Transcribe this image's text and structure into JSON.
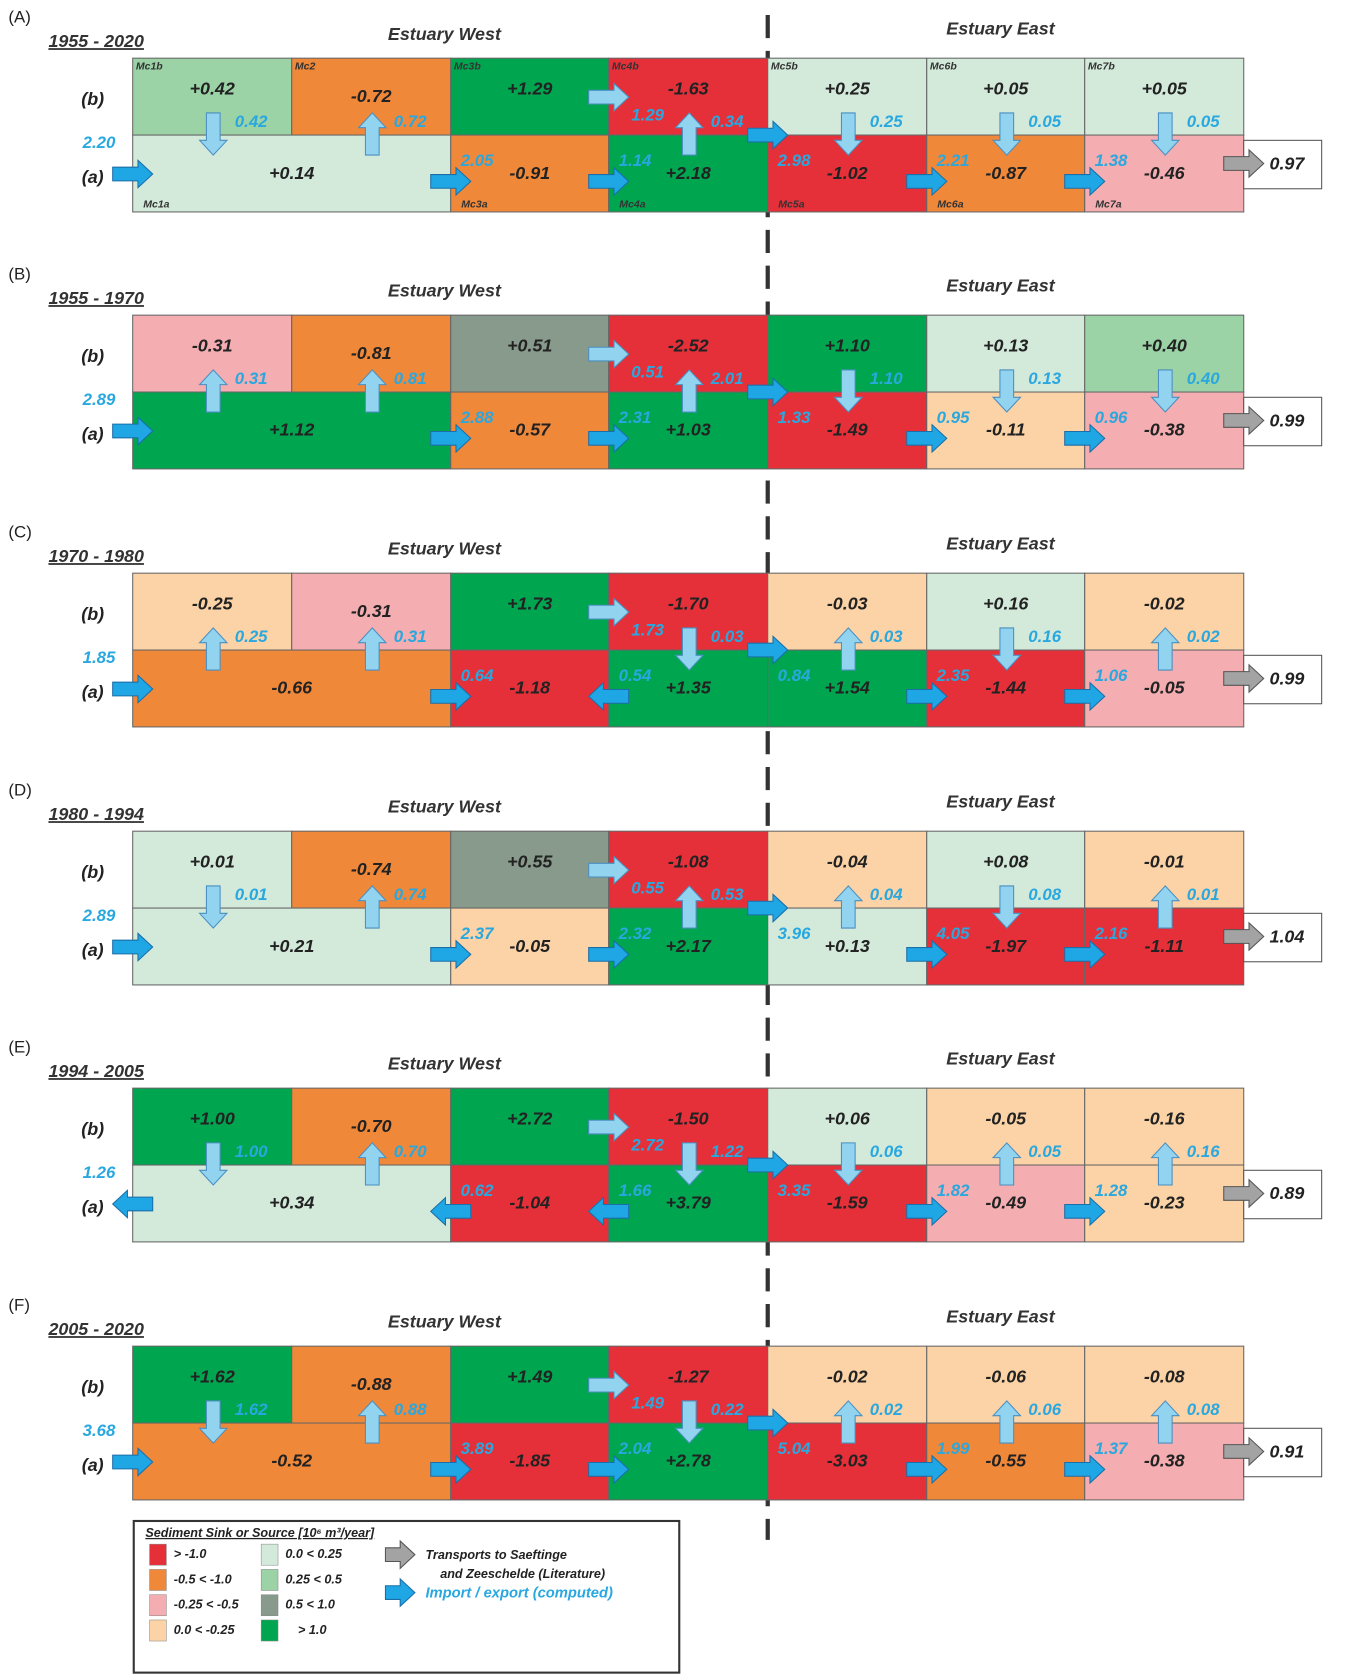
{
  "panels": [
    {
      "label": "(A)",
      "period": "1955 - 2020",
      "west": "Estuary West",
      "east": "Estuary East",
      "row_b": "(b)",
      "row_a": "(a)",
      "names_b": [
        "Mc1b",
        "Mc2",
        "Mc3b",
        "Mc4b",
        "Mc5b",
        "Mc6b",
        "Mc7b"
      ],
      "names_a": [
        "Mc1a",
        "Mc3a",
        "Mc4a",
        "Mc5a",
        "Mc6a",
        "Mc7a"
      ],
      "b": [
        {
          "value": "+0.42",
          "color": "#9bd3a7",
          "exchange": "0.42",
          "dir": "down"
        },
        {
          "value": "-0.72",
          "color": "#f0883a",
          "exchange": "0.72",
          "dir": "up"
        },
        {
          "value": "+1.29",
          "color": "#00a550"
        },
        {
          "value": "-1.63",
          "color": "#e5303a",
          "inflow": "1.29",
          "exchange": "0.34",
          "dir": "up"
        },
        {
          "value": "+0.25",
          "color": "#d3eadb",
          "exchange": "0.25",
          "dir": "down"
        },
        {
          "value": "+0.05",
          "color": "#d3eadb",
          "exchange": "0.05",
          "dir": "down"
        },
        {
          "value": "+0.05",
          "color": "#d3eadb",
          "exchange": "0.05",
          "dir": "down"
        }
      ],
      "a": [
        {
          "value": "+0.14",
          "color": "#d3eadb",
          "inflow": "2.20",
          "dir": "right"
        },
        {
          "value": "-0.91",
          "color": "#f0883a",
          "inflow": "2.05",
          "dir": "right"
        },
        {
          "value": "+2.18",
          "color": "#00a550",
          "inflow": "1.14",
          "dir": "right"
        },
        {
          "value": "-1.02",
          "color": "#e5303a",
          "inflow": "2.98",
          "dir": "right"
        },
        {
          "value": "-0.87",
          "color": "#f0883a",
          "inflow": "2.21",
          "dir": "right"
        },
        {
          "value": "-0.46",
          "color": "#f4adb0",
          "inflow": "1.38",
          "dir": "right"
        }
      ],
      "outflow": "0.97"
    },
    {
      "label": "(B)",
      "period": "1955 - 1970",
      "west": "Estuary West",
      "east": "Estuary East",
      "row_b": "(b)",
      "row_a": "(a)",
      "b": [
        {
          "value": "-0.31",
          "color": "#f4adb0",
          "exchange": "0.31",
          "dir": "up"
        },
        {
          "value": "-0.81",
          "color": "#f0883a",
          "exchange": "0.81",
          "dir": "up"
        },
        {
          "value": "+0.51",
          "color": "#889a8b"
        },
        {
          "value": "-2.52",
          "color": "#e5303a",
          "inflow": "0.51",
          "exchange": "2.01",
          "dir": "up"
        },
        {
          "value": "+1.10",
          "color": "#00a550",
          "exchange": "1.10",
          "dir": "down"
        },
        {
          "value": "+0.13",
          "color": "#d3eadb",
          "exchange": "0.13",
          "dir": "down"
        },
        {
          "value": "+0.40",
          "color": "#9bd3a7",
          "exchange": "0.40",
          "dir": "down"
        }
      ],
      "a": [
        {
          "value": "+1.12",
          "color": "#00a550",
          "inflow": "2.89",
          "dir": "right"
        },
        {
          "value": "-0.57",
          "color": "#f0883a",
          "inflow": "2.88",
          "dir": "right"
        },
        {
          "value": "+1.03",
          "color": "#00a550",
          "inflow": "2.31",
          "dir": "right"
        },
        {
          "value": "-1.49",
          "color": "#e5303a",
          "inflow": "1.33",
          "dir": "right"
        },
        {
          "value": "-0.11",
          "color": "#fbd3a6",
          "inflow": "0.95",
          "dir": "right"
        },
        {
          "value": "-0.38",
          "color": "#f4adb0",
          "inflow": "0.96",
          "dir": "right"
        }
      ],
      "outflow": "0.99"
    },
    {
      "label": "(C)",
      "period": "1970 - 1980",
      "west": "Estuary West",
      "east": "Estuary East",
      "row_b": "(b)",
      "row_a": "(a)",
      "b": [
        {
          "value": "-0.25",
          "color": "#fbd3a6",
          "exchange": "0.25",
          "dir": "up"
        },
        {
          "value": "-0.31",
          "color": "#f4adb0",
          "exchange": "0.31",
          "dir": "up"
        },
        {
          "value": "+1.73",
          "color": "#00a550"
        },
        {
          "value": "-1.70",
          "color": "#e5303a",
          "inflow": "1.73",
          "exchange": "0.03",
          "dir": "down"
        },
        {
          "value": "-0.03",
          "color": "#fbd3a6",
          "exchange": "0.03",
          "dir": "up"
        },
        {
          "value": "+0.16",
          "color": "#d3eadb",
          "exchange": "0.16",
          "dir": "down"
        },
        {
          "value": "-0.02",
          "color": "#fbd3a6",
          "exchange": "0.02",
          "dir": "up"
        }
      ],
      "a": [
        {
          "value": "-0.66",
          "color": "#f0883a",
          "inflow": "1.85",
          "dir": "right"
        },
        {
          "value": "-1.18",
          "color": "#e5303a",
          "inflow": "0.64",
          "dir": "right"
        },
        {
          "value": "+1.35",
          "color": "#00a550",
          "inflow": "0.54",
          "dir": "left"
        },
        {
          "value": "+1.54",
          "color": "#00a550",
          "inflow": "0.84",
          "dir": "right"
        },
        {
          "value": "-1.44",
          "color": "#e5303a",
          "inflow": "2.35",
          "dir": "right"
        },
        {
          "value": "-0.05",
          "color": "#f4adb0",
          "inflow": "1.06",
          "dir": "right"
        }
      ],
      "outflow": "0.99"
    },
    {
      "label": "(D)",
      "period": "1980 - 1994",
      "west": "Estuary West",
      "east": "Estuary East",
      "row_b": "(b)",
      "row_a": "(a)",
      "b": [
        {
          "value": "+0.01",
          "color": "#d3eadb",
          "exchange": "0.01",
          "dir": "down"
        },
        {
          "value": "-0.74",
          "color": "#f0883a",
          "exchange": "0.74",
          "dir": "up"
        },
        {
          "value": "+0.55",
          "color": "#889a8b"
        },
        {
          "value": "-1.08",
          "color": "#e5303a",
          "inflow": "0.55",
          "exchange": "0.53",
          "dir": "up"
        },
        {
          "value": "-0.04",
          "color": "#fbd3a6",
          "exchange": "0.04",
          "dir": "up"
        },
        {
          "value": "+0.08",
          "color": "#d3eadb",
          "exchange": "0.08",
          "dir": "down"
        },
        {
          "value": "-0.01",
          "color": "#fbd3a6",
          "exchange": "0.01",
          "dir": "up"
        }
      ],
      "a": [
        {
          "value": "+0.21",
          "color": "#d3eadb",
          "inflow": "2.89",
          "dir": "right"
        },
        {
          "value": "-0.05",
          "color": "#fbd3a6",
          "inflow": "2.37",
          "dir": "right"
        },
        {
          "value": "+2.17",
          "color": "#00a550",
          "inflow": "2.32",
          "dir": "right"
        },
        {
          "value": "+0.13",
          "color": "#d3eadb",
          "inflow": "3.96",
          "dir": "right"
        },
        {
          "value": "-1.97",
          "color": "#e5303a",
          "inflow": "4.05",
          "dir": "right"
        },
        {
          "value": "-1.11",
          "color": "#e5303a",
          "inflow": "2.16",
          "dir": "right"
        }
      ],
      "outflow": "1.04"
    },
    {
      "label": "(E)",
      "period": "1994 - 2005",
      "west": "Estuary West",
      "east": "Estuary East",
      "row_b": "(b)",
      "row_a": "(a)",
      "b": [
        {
          "value": "+1.00",
          "color": "#00a550",
          "exchange": "1.00",
          "dir": "down"
        },
        {
          "value": "-0.70",
          "color": "#f0883a",
          "exchange": "0.70",
          "dir": "up"
        },
        {
          "value": "+2.72",
          "color": "#00a550"
        },
        {
          "value": "-1.50",
          "color": "#e5303a",
          "inflow": "2.72",
          "exchange": "1.22",
          "dir": "down"
        },
        {
          "value": "+0.06",
          "color": "#d3eadb",
          "exchange": "0.06",
          "dir": "down"
        },
        {
          "value": "-0.05",
          "color": "#fbd3a6",
          "exchange": "0.05",
          "dir": "up"
        },
        {
          "value": "-0.16",
          "color": "#fbd3a6",
          "exchange": "0.16",
          "dir": "up"
        }
      ],
      "a": [
        {
          "value": "+0.34",
          "color": "#d3eadb",
          "inflow": "1.26",
          "dir": "left"
        },
        {
          "value": "-1.04",
          "color": "#e5303a",
          "inflow": "0.62",
          "dir": "left"
        },
        {
          "value": "+3.79",
          "color": "#00a550",
          "inflow": "1.66",
          "dir": "left"
        },
        {
          "value": "-1.59",
          "color": "#e5303a",
          "inflow": "3.35",
          "dir": "right"
        },
        {
          "value": "-0.49",
          "color": "#f4adb0",
          "inflow": "1.82",
          "dir": "right"
        },
        {
          "value": "-0.23",
          "color": "#fbd3a6",
          "inflow": "1.28",
          "dir": "right"
        }
      ],
      "outflow": "0.89"
    },
    {
      "label": "(F)",
      "period": "2005 - 2020",
      "west": "Estuary West",
      "east": "Estuary East",
      "row_b": "(b)",
      "row_a": "(a)",
      "b": [
        {
          "value": "+1.62",
          "color": "#00a550",
          "exchange": "1.62",
          "dir": "down"
        },
        {
          "value": "-0.88",
          "color": "#f0883a",
          "exchange": "0.88",
          "dir": "up"
        },
        {
          "value": "+1.49",
          "color": "#00a550"
        },
        {
          "value": "-1.27",
          "color": "#e5303a",
          "inflow": "1.49",
          "exchange": "0.22",
          "dir": "down"
        },
        {
          "value": "-0.02",
          "color": "#fbd3a6",
          "exchange": "0.02",
          "dir": "up"
        },
        {
          "value": "-0.06",
          "color": "#fbd3a6",
          "exchange": "0.06",
          "dir": "up"
        },
        {
          "value": "-0.08",
          "color": "#fbd3a6",
          "exchange": "0.08",
          "dir": "up"
        }
      ],
      "a": [
        {
          "value": "-0.52",
          "color": "#f0883a",
          "inflow": "3.68",
          "dir": "right"
        },
        {
          "value": "-1.85",
          "color": "#e5303a",
          "inflow": "3.89",
          "dir": "right"
        },
        {
          "value": "+2.78",
          "color": "#00a550",
          "inflow": "2.04",
          "dir": "right"
        },
        {
          "value": "-3.03",
          "color": "#e5303a",
          "inflow": "5.04",
          "dir": "right"
        },
        {
          "value": "-0.55",
          "color": "#f0883a",
          "inflow": "1.99",
          "dir": "right"
        },
        {
          "value": "-0.38",
          "color": "#f4adb0",
          "inflow": "1.37",
          "dir": "right"
        }
      ],
      "outflow": "0.91"
    }
  ],
  "legend": {
    "title": "Sediment Sink or Source [10⁶ m³/year]",
    "items": [
      {
        "label": "> -1.0",
        "color": "#e5303a"
      },
      {
        "label": "-0.5 < -1.0",
        "color": "#f0883a"
      },
      {
        "label": "-0.25 < -0.5",
        "color": "#f4adb0"
      },
      {
        "label": "0.0 < -0.25",
        "color": "#fbd3a6"
      },
      {
        "label": "0.0 < 0.25",
        "color": "#d3eadb"
      },
      {
        "label": "0.25 < 0.5",
        "color": "#9bd3a7"
      },
      {
        "label": "0.5 < 1.0",
        "color": "#889a8b"
      },
      {
        "label": "> 1.0",
        "color": "#00a550"
      }
    ],
    "gray_arrow": [
      "Transports to Saeftinge",
      "and Zeeschelde (Literature)"
    ],
    "blue_arrow": "Import / export  (computed)"
  }
}
